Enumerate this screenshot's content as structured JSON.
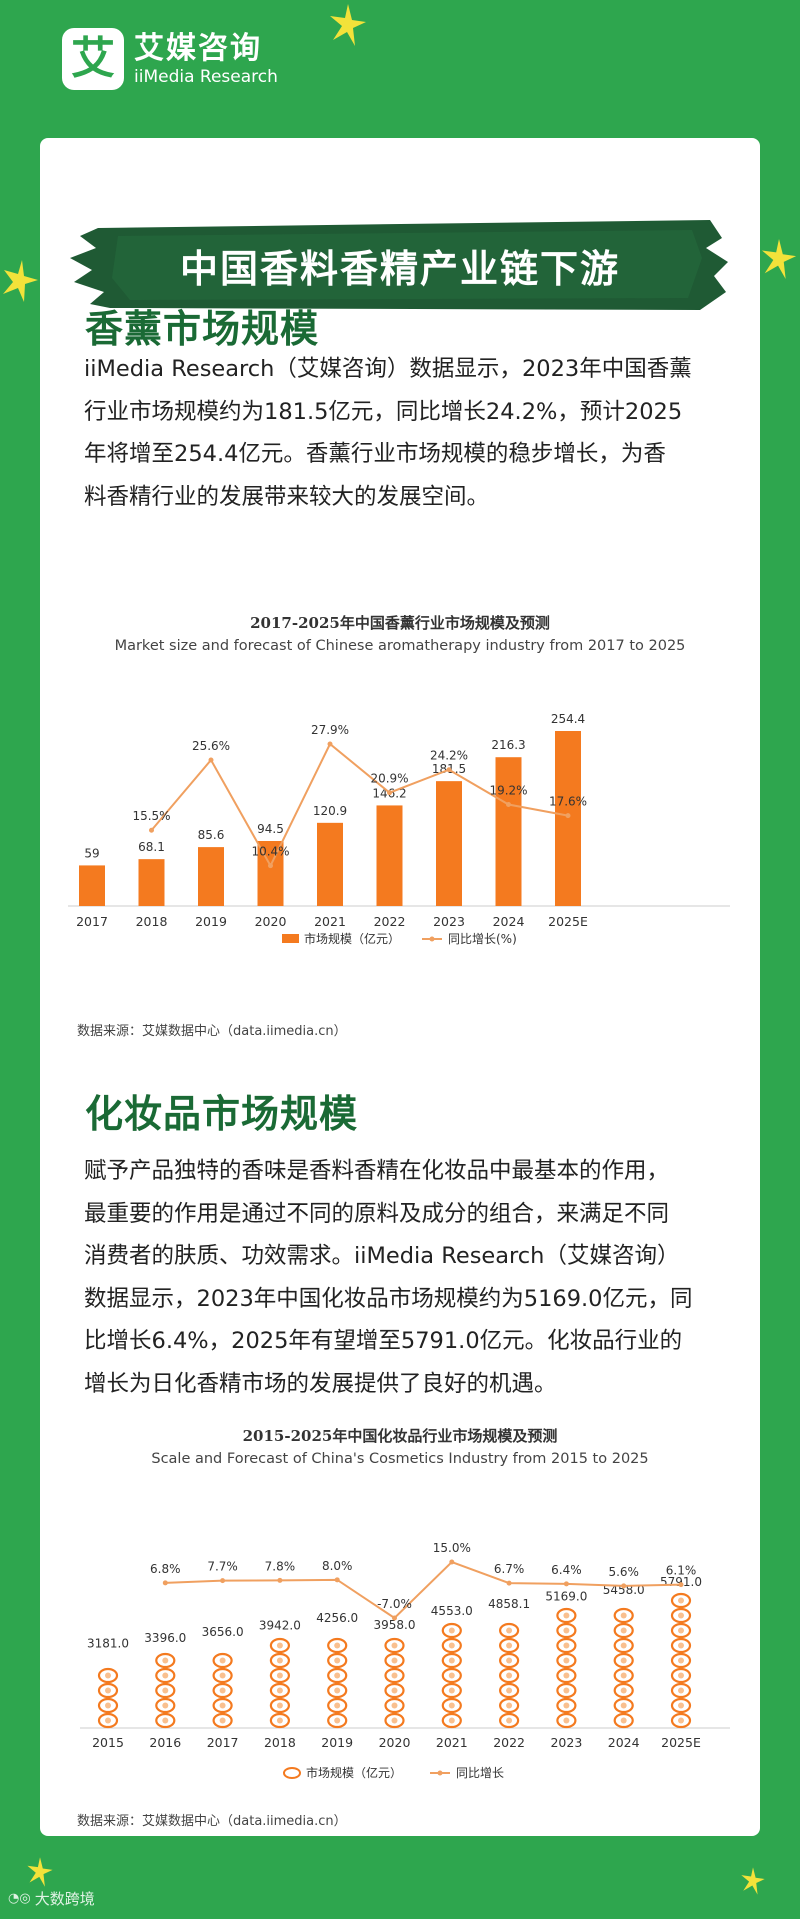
{
  "brand": {
    "logo_char": "艾",
    "name_cn": "艾媒咨询",
    "name_en": "iiMedia Research"
  },
  "banner": {
    "title": "中国香料香精产业链下游"
  },
  "section1": {
    "title": "香薰市场规模",
    "paragraph_lines": [
      "iiMedia Research（艾媒咨询）数据显示，2023年中国香薰",
      "行业市场规模约为181.5亿元，同比增长24.2%，预计2025",
      "年将增至254.4亿元。香薰行业市场规模的稳步增长，为香",
      "料香精行业的发展带来较大的发展空间。"
    ],
    "source": "数据来源：艾媒数据中心（data.iimedia.cn）"
  },
  "section2": {
    "title": "化妆品市场规模",
    "paragraph_lines": [
      "赋予产品独特的香味是香料香精在化妆品中最基本的作用，",
      "最重要的作用是通过不同的原料及成分的组合，来满足不同",
      "消费者的肤质、功效需求。iiMedia Research（艾媒咨询）",
      "数据显示，2023年中国化妆品市场规模约为5169.0亿元，同",
      "比增长6.4%，2025年有望增至5791.0亿元。化妆品行业的",
      "增长为日化香精市场的发展提供了良好的机遇。"
    ],
    "source": "数据来源：艾媒数据中心（data.iimedia.cn）"
  },
  "footer": {
    "watermark": "大数跨境"
  },
  "colors": {
    "background": "#2ea64e",
    "title_green": "#1a6a35",
    "banner_dark": "#1f5a34",
    "bar_orange": "#f47a1f",
    "line_orange": "#f0a060",
    "star_yellow": "#f3e23a"
  },
  "chart_data": [
    {
      "type": "bar",
      "title": "2017-2025年中国香薰行业市场规模及预测",
      "subtitle": "Market size and forecast of Chinese aromatherapy industry from 2017 to 2025",
      "categories": [
        "2017",
        "2018",
        "2019",
        "2020",
        "2021",
        "2022",
        "2023",
        "2024",
        "2025E"
      ],
      "series": [
        {
          "name": "市场规模（亿元）",
          "type": "bar",
          "values": [
            59,
            68.1,
            85.6,
            94.5,
            120.9,
            146.2,
            181.5,
            216.3,
            254.4
          ],
          "labels": [
            "59",
            "68.1",
            "85.6",
            "94.5",
            "120.9",
            "146.2",
            "181.5",
            "216.3",
            "254.4"
          ]
        },
        {
          "name": "同比增长(%)",
          "type": "line",
          "values": [
            null,
            15.5,
            25.6,
            10.4,
            27.9,
            20.9,
            24.2,
            19.2,
            17.6
          ],
          "labels": [
            "",
            "15.5%",
            "25.6%",
            "10.4%",
            "27.9%",
            "20.9%",
            "24.2%",
            "19.2%",
            "17.6%"
          ]
        }
      ],
      "legend": "bottom",
      "grid": false
    },
    {
      "type": "bar",
      "title": "2015-2025年中国化妆品行业市场规模及预测",
      "subtitle": "Scale and Forecast of China's Cosmetics Industry from 2015 to 2025",
      "categories": [
        "2015",
        "2016",
        "2017",
        "2018",
        "2019",
        "2020",
        "2021",
        "2022",
        "2023",
        "2024",
        "2025E"
      ],
      "series": [
        {
          "name": "市场规模（亿元）",
          "type": "pictorial-bar",
          "values": [
            3181.0,
            3396.0,
            3656.0,
            3942.0,
            4256.0,
            3958.0,
            4553.0,
            4858.1,
            5169.0,
            5458.0,
            5791.0
          ],
          "labels": [
            "3181.0",
            "3396.0",
            "3656.0",
            "3942.0",
            "4256.0",
            "3958.0",
            "4553.0",
            "4858.1",
            "5169.0",
            "5458.0",
            "5791.0"
          ]
        },
        {
          "name": "同比增长",
          "type": "line",
          "values": [
            null,
            6.8,
            7.7,
            7.8,
            8.0,
            -7.0,
            15.0,
            6.7,
            6.4,
            5.6,
            6.1
          ],
          "labels": [
            "",
            "6.8%",
            "7.7%",
            "7.8%",
            "8.0%",
            "-7.0%",
            "15.0%",
            "6.7%",
            "6.4%",
            "5.6%",
            "6.1%"
          ]
        }
      ],
      "legend": "bottom",
      "grid": false
    }
  ]
}
